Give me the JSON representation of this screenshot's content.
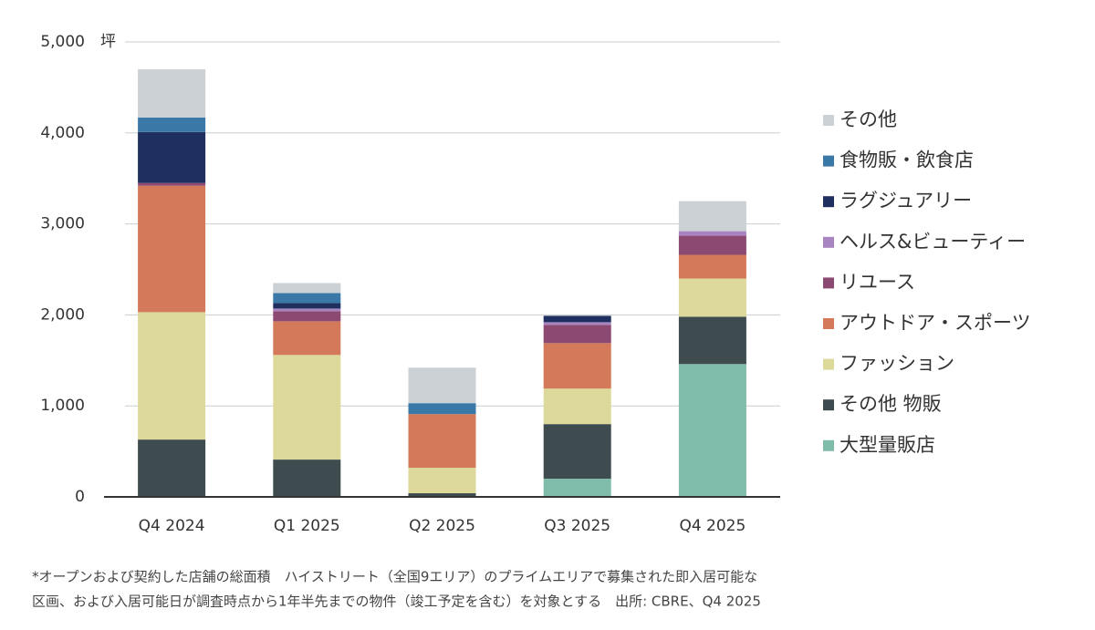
{
  "chart_data": {
    "type": "stacked-bar",
    "y_unit": "坪",
    "categories": [
      "Q4 2024",
      "Q1 2025",
      "Q2 2025",
      "Q3 2025",
      "Q4 2025"
    ],
    "series": [
      {
        "name": "大型量販店",
        "color": "#7fbcaa",
        "values": [
          0,
          0,
          0,
          200,
          1460
        ]
      },
      {
        "name": "その他 物販",
        "color": "#3f4c4f",
        "values": [
          630,
          410,
          40,
          600,
          520
        ]
      },
      {
        "name": "ファッション",
        "color": "#dcd99a",
        "values": [
          1400,
          1150,
          280,
          390,
          420
        ]
      },
      {
        "name": "アウトドア・スポーツ",
        "color": "#d4795a",
        "values": [
          1390,
          370,
          590,
          500,
          260
        ]
      },
      {
        "name": "リユース",
        "color": "#8c4a72",
        "values": [
          30,
          110,
          0,
          200,
          210
        ]
      },
      {
        "name": "ヘルス&ビューティー",
        "color": "#a884c0",
        "values": [
          0,
          30,
          0,
          30,
          50
        ]
      },
      {
        "name": "ラグジュアリー",
        "color": "#1f2f5f",
        "values": [
          560,
          60,
          0,
          70,
          0
        ]
      },
      {
        "name": "食物販・飲食店",
        "color": "#3a78a8",
        "values": [
          160,
          110,
          120,
          0,
          0
        ]
      },
      {
        "name": "その他",
        "color": "#ccd1d5",
        "values": [
          530,
          110,
          390,
          0,
          330
        ]
      }
    ],
    "ylim": [
      0,
      5000
    ],
    "yticks": [
      0,
      {
        "value": 1000,
        "label": "1,000"
      },
      {
        "value": 2000,
        "label": "2,000"
      },
      {
        "value": 3000,
        "label": "3,000"
      },
      {
        "value": 4000,
        "label": "4,000"
      },
      {
        "value": 5000,
        "label": "5,000"
      }
    ],
    "grid": true,
    "legend": "right",
    "notes": [
      "*オープンおよび契約した店舗の総面積　ハイストリート（全国9エリア）のプライムエリアで募集された即入居可能な",
      "区画、および入居可能日が調査時点から1年半先までの物件（竣工予定を含む）を対象とする　出所: CBRE、Q4 2025"
    ]
  }
}
